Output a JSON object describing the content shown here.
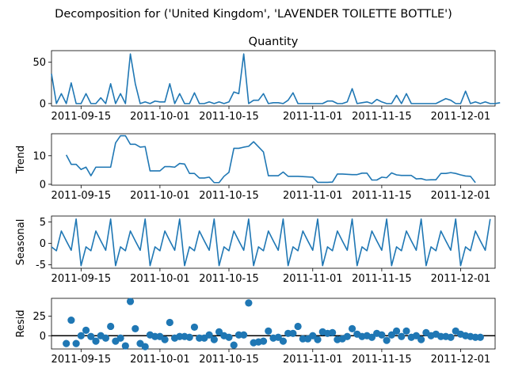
{
  "figure": {
    "suptitle": "Decomposition for ('United Kingdom', 'LAVENDER TOILETTE BOTTLE')"
  },
  "chart_data": [
    {
      "type": "line",
      "title": "Quantity",
      "ylabel": "",
      "x_start": "2011-09-09",
      "x_end": "2011-12-08",
      "xticks": [
        "2011-09-15",
        "2011-10-01",
        "2011-10-15",
        "2011-11-01",
        "2011-11-15",
        "2011-12-01"
      ],
      "yticks": [
        0,
        50
      ],
      "ylim": [
        -3,
        64
      ],
      "series": [
        {
          "values": [
            36,
            0,
            12,
            0,
            25,
            0,
            0,
            12,
            0,
            0,
            7,
            0,
            24,
            0,
            12,
            0,
            60,
            24,
            0,
            2,
            0,
            3,
            2,
            2,
            24,
            0,
            12,
            0,
            0,
            13,
            0,
            0,
            2,
            0,
            2,
            0,
            2,
            14,
            12,
            60,
            0,
            4,
            4,
            12,
            0,
            1,
            1,
            0,
            4,
            13,
            0,
            0,
            0,
            0,
            0,
            0,
            3,
            3,
            0,
            0,
            2,
            18,
            0,
            1,
            2,
            0,
            5,
            2,
            0,
            0,
            10,
            0,
            12,
            0,
            0,
            0,
            0,
            0,
            0,
            3,
            6,
            4,
            0,
            0,
            15,
            0,
            2,
            0,
            2,
            0,
            0,
            1
          ]
        }
      ]
    },
    {
      "type": "line",
      "title": "",
      "ylabel": "Trend",
      "x_start": "2011-09-09",
      "x_end": "2011-12-08",
      "xticks": [
        "2011-09-15",
        "2011-10-01",
        "2011-10-15",
        "2011-11-01",
        "2011-11-15",
        "2011-12-01"
      ],
      "yticks": [
        0,
        10
      ],
      "ylim": [
        -0.3,
        17.7
      ],
      "series": [
        {
          "values": [
            null,
            null,
            null,
            10.3,
            7,
            7,
            5.2,
            6,
            3,
            6,
            6,
            6,
            6,
            14.5,
            17,
            17,
            14,
            14,
            13,
            13.2,
            4.7,
            4.7,
            4.7,
            6.2,
            6.2,
            6,
            7.3,
            7.1,
            3.8,
            3.8,
            2.2,
            2.2,
            2.5,
            0.6,
            0.6,
            2.8,
            4.2,
            12.6,
            12.6,
            13,
            13.3,
            14.9,
            13.1,
            11.3,
            3,
            3,
            3,
            4.3,
            2.8,
            2.8,
            2.8,
            2.7,
            2.6,
            2.5,
            0.7,
            0.7,
            0.7,
            0.8,
            3.6,
            3.6,
            3.5,
            3.4,
            3.4,
            3.9,
            3.9,
            1.5,
            1.5,
            2.5,
            2.3,
            4,
            3.3,
            3.1,
            3.1,
            3.1,
            1.9,
            2,
            1.5,
            1.6,
            1.6,
            3.8,
            3.8,
            4.1,
            3.8,
            3.3,
            2.9,
            2.8,
            0.6,
            null,
            null,
            null,
            null,
            null
          ]
        }
      ]
    },
    {
      "type": "line",
      "title": "",
      "ylabel": "Seasonal",
      "x_start": "2011-09-09",
      "x_end": "2011-12-08",
      "xticks": [
        "2011-09-15",
        "2011-10-01",
        "2011-10-15",
        "2011-11-01",
        "2011-11-15",
        "2011-12-01"
      ],
      "yticks": [
        -5,
        0,
        5
      ],
      "ylim": [
        -5.8,
        6.4
      ],
      "series": [
        {
          "values": [
            -0.8,
            -1.7,
            2.9,
            0.6,
            -1.6,
            5.7,
            -5.2,
            -0.8,
            -1.7,
            2.9,
            0.6,
            -1.6,
            5.7,
            -5.2,
            -0.8,
            -1.7,
            2.9,
            0.6,
            -1.6,
            5.7,
            -5.2,
            -0.8,
            -1.7,
            2.9,
            0.6,
            -1.6,
            5.7,
            -5.2,
            -0.8,
            -1.7,
            2.9,
            0.6,
            -1.6,
            5.7,
            -5.2,
            -0.8,
            -1.7,
            2.9,
            0.6,
            -1.6,
            5.7,
            -5.2,
            -0.8,
            -1.7,
            2.9,
            0.6,
            -1.6,
            5.7,
            -5.2,
            -0.8,
            -1.7,
            2.9,
            0.6,
            -1.6,
            5.7,
            -5.2,
            -0.8,
            -1.7,
            2.9,
            0.6,
            -1.6,
            5.7,
            -5.2,
            -0.8,
            -1.7,
            2.9,
            0.6,
            -1.6,
            5.7,
            -5.2,
            -0.8,
            -1.7,
            2.9,
            0.6,
            -1.6,
            5.7,
            -5.2,
            -0.8,
            -1.7,
            2.9,
            0.6,
            -1.6,
            5.7,
            -5.2,
            -0.8,
            -1.7,
            2.9,
            0.6,
            -1.6,
            5.7
          ]
        }
      ]
    },
    {
      "type": "scatter",
      "title": "",
      "ylabel": "Resid",
      "x_start": "2011-09-09",
      "x_end": "2011-12-08",
      "xticks": [
        "2011-09-15",
        "2011-10-01",
        "2011-10-15",
        "2011-11-01",
        "2011-11-15",
        "2011-12-01"
      ],
      "yticks": [
        0,
        25
      ],
      "ylim": [
        -17,
        48
      ],
      "baseline": 0,
      "points": [
        [
          3,
          -10
        ],
        [
          4,
          20
        ],
        [
          5,
          -10
        ],
        [
          6,
          0
        ],
        [
          7,
          7
        ],
        [
          8,
          -1
        ],
        [
          9,
          -7
        ],
        [
          10,
          0
        ],
        [
          11,
          -3
        ],
        [
          12,
          12
        ],
        [
          13,
          -7
        ],
        [
          14,
          -3
        ],
        [
          15,
          -13
        ],
        [
          16,
          44
        ],
        [
          17,
          9
        ],
        [
          18,
          -10
        ],
        [
          19,
          -14
        ],
        [
          20,
          1
        ],
        [
          21,
          -1
        ],
        [
          22,
          -1
        ],
        [
          23,
          -5
        ],
        [
          24,
          17
        ],
        [
          25,
          -3
        ],
        [
          26,
          -1
        ],
        [
          27,
          -1
        ],
        [
          28,
          -2
        ],
        [
          29,
          11
        ],
        [
          30,
          -3
        ],
        [
          31,
          -3
        ],
        [
          32,
          1
        ],
        [
          33,
          -5
        ],
        [
          34,
          5
        ],
        [
          35,
          0
        ],
        [
          36,
          -2
        ],
        [
          37,
          -12
        ],
        [
          38,
          1
        ],
        [
          39,
          1
        ],
        [
          40,
          42
        ],
        [
          41,
          -9
        ],
        [
          42,
          -8
        ],
        [
          43,
          -7
        ],
        [
          44,
          6
        ],
        [
          45,
          -3
        ],
        [
          46,
          -2
        ],
        [
          47,
          -7
        ],
        [
          48,
          3
        ],
        [
          49,
          3
        ],
        [
          50,
          12
        ],
        [
          51,
          -4
        ],
        [
          52,
          -4
        ],
        [
          53,
          0
        ],
        [
          54,
          -5
        ],
        [
          55,
          5
        ],
        [
          56,
          3
        ],
        [
          57,
          4
        ],
        [
          58,
          -5
        ],
        [
          59,
          -4
        ],
        [
          60,
          -1
        ],
        [
          61,
          9
        ],
        [
          62,
          2
        ],
        [
          63,
          -1
        ],
        [
          64,
          0
        ],
        [
          65,
          -2
        ],
        [
          66,
          3
        ],
        [
          67,
          1
        ],
        [
          68,
          -6
        ],
        [
          69,
          1
        ],
        [
          70,
          6
        ],
        [
          71,
          -1
        ],
        [
          72,
          6
        ],
        [
          73,
          -2
        ],
        [
          74,
          0
        ],
        [
          75,
          -5
        ],
        [
          76,
          4
        ],
        [
          77,
          0
        ],
        [
          78,
          2
        ],
        [
          79,
          -1
        ],
        [
          80,
          -1
        ],
        [
          81,
          -2
        ],
        [
          82,
          6
        ],
        [
          83,
          2
        ],
        [
          84,
          0
        ],
        [
          85,
          -1
        ],
        [
          86,
          -2
        ],
        [
          87,
          -2
        ]
      ]
    }
  ]
}
